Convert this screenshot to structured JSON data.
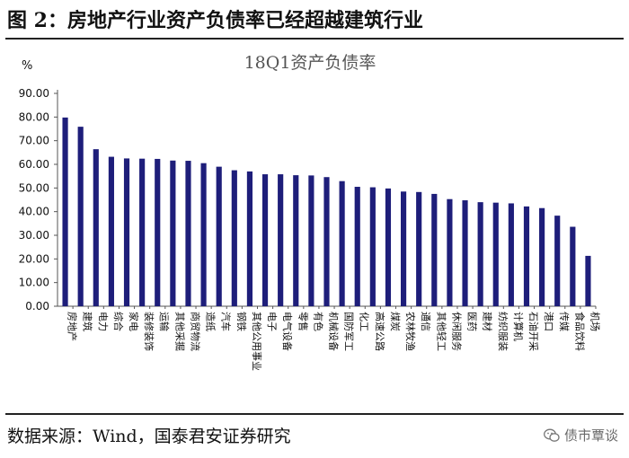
{
  "figure_title": "图  2：房地产行业资产负债率已经超越建筑行业",
  "source_text": "数据来源：Wind，国泰君安证券研究",
  "watermark": {
    "icon": "wechat-icon",
    "text": "债市覃谈"
  },
  "chart_data": {
    "type": "bar",
    "title": "18Q1资产负债率",
    "ylabel": "%",
    "xlabel": "",
    "ylim": [
      0,
      90
    ],
    "ytick_step": 10,
    "ytick_format": "2dp",
    "grid": false,
    "bar_color": "#1e1e7a",
    "categories": [
      "房地产",
      "建筑",
      "电力",
      "综合",
      "家电",
      "装修装饰",
      "运输",
      "其他采掘",
      "商贸物流",
      "造纸",
      "汽车",
      "钢铁",
      "其他公用事业",
      "电子",
      "电气设备",
      "零售",
      "有色",
      "机械设备",
      "国防军工",
      "化工",
      "高速公路",
      "煤炭",
      "农林牧渔",
      "通信",
      "其他轻工",
      "休闲服务",
      "医药",
      "建材",
      "纺织服装",
      "计算机",
      "石油开采",
      "港口",
      "传媒",
      "食品饮料",
      "机场"
    ],
    "values": [
      79.8,
      75.9,
      66.4,
      63.2,
      62.5,
      62.4,
      62.3,
      61.6,
      61.5,
      60.5,
      59.0,
      57.5,
      57.0,
      55.8,
      55.8,
      55.4,
      55.3,
      54.6,
      52.9,
      50.5,
      50.3,
      49.8,
      48.5,
      48.3,
      47.5,
      45.3,
      44.8,
      44.0,
      43.8,
      43.5,
      42.2,
      41.5,
      38.3,
      33.6,
      21.3
    ]
  }
}
